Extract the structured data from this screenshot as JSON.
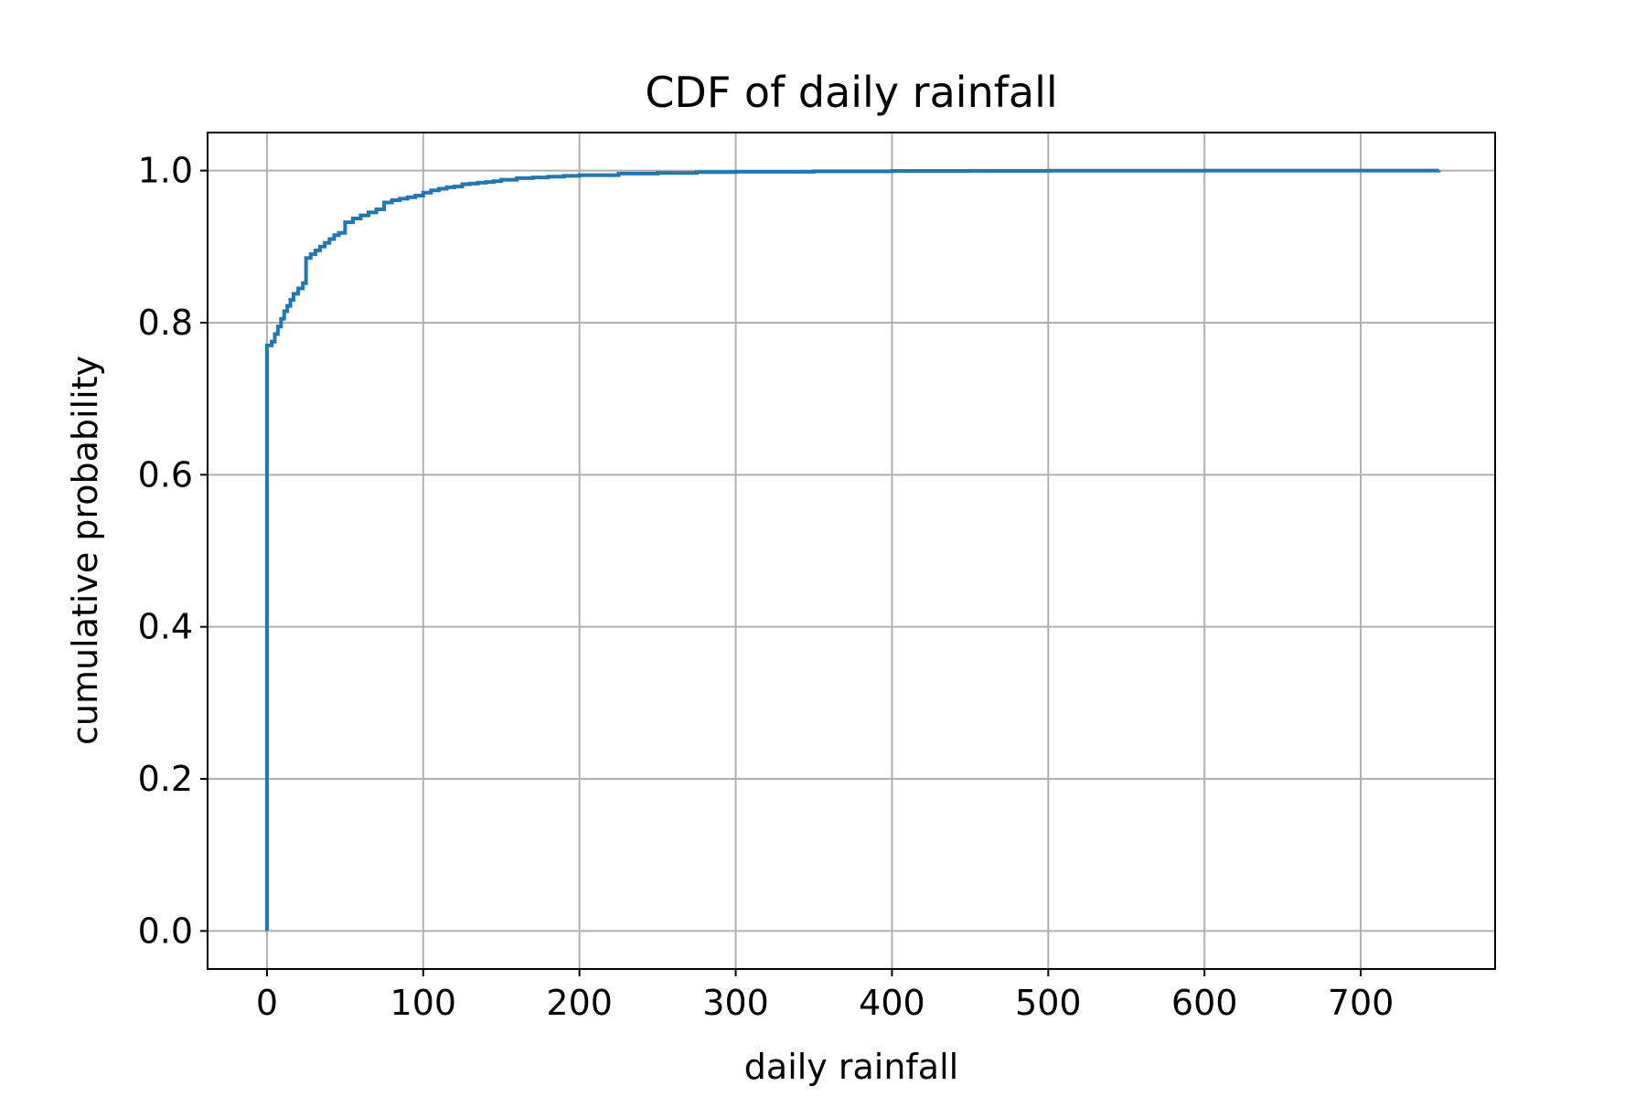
{
  "chart_data": {
    "type": "line",
    "title": "CDF of daily rainfall",
    "xlabel": "daily rainfall",
    "ylabel": "cumulative probability",
    "xlim": [
      -38,
      786
    ],
    "ylim": [
      -0.05,
      1.05
    ],
    "x_ticks": [
      0,
      100,
      200,
      300,
      400,
      500,
      600,
      700
    ],
    "y_ticks": [
      0.0,
      0.2,
      0.4,
      0.6,
      0.8,
      1.0
    ],
    "y_tick_labels": [
      "0.0",
      "0.2",
      "0.4",
      "0.6",
      "0.8",
      "1.0"
    ],
    "grid": true,
    "legend": "none",
    "line_color": "#1f77b4",
    "series": [
      {
        "step": true,
        "x": [
          0,
          0,
          3,
          5,
          7,
          9,
          11,
          13,
          15,
          17,
          20,
          23,
          25,
          25,
          28,
          31,
          34,
          37,
          40,
          43,
          46,
          50,
          50,
          55,
          60,
          65,
          70,
          75,
          75,
          80,
          85,
          90,
          95,
          100,
          105,
          110,
          115,
          120,
          125,
          130,
          135,
          140,
          145,
          150,
          160,
          170,
          180,
          190,
          200,
          225,
          250,
          275,
          300,
          350,
          400,
          450,
          500,
          600,
          750
        ],
        "y": [
          0.0,
          0.77,
          0.775,
          0.785,
          0.795,
          0.805,
          0.815,
          0.822,
          0.83,
          0.838,
          0.845,
          0.852,
          0.858,
          0.885,
          0.89,
          0.895,
          0.9,
          0.905,
          0.91,
          0.915,
          0.918,
          0.921,
          0.932,
          0.937,
          0.941,
          0.945,
          0.949,
          0.952,
          0.958,
          0.961,
          0.963,
          0.965,
          0.967,
          0.971,
          0.974,
          0.976,
          0.978,
          0.979,
          0.982,
          0.983,
          0.984,
          0.985,
          0.986,
          0.988,
          0.99,
          0.991,
          0.992,
          0.993,
          0.994,
          0.996,
          0.997,
          0.998,
          0.9985,
          0.999,
          0.9995,
          0.9997,
          0.9998,
          0.9999,
          1.0
        ]
      }
    ]
  }
}
